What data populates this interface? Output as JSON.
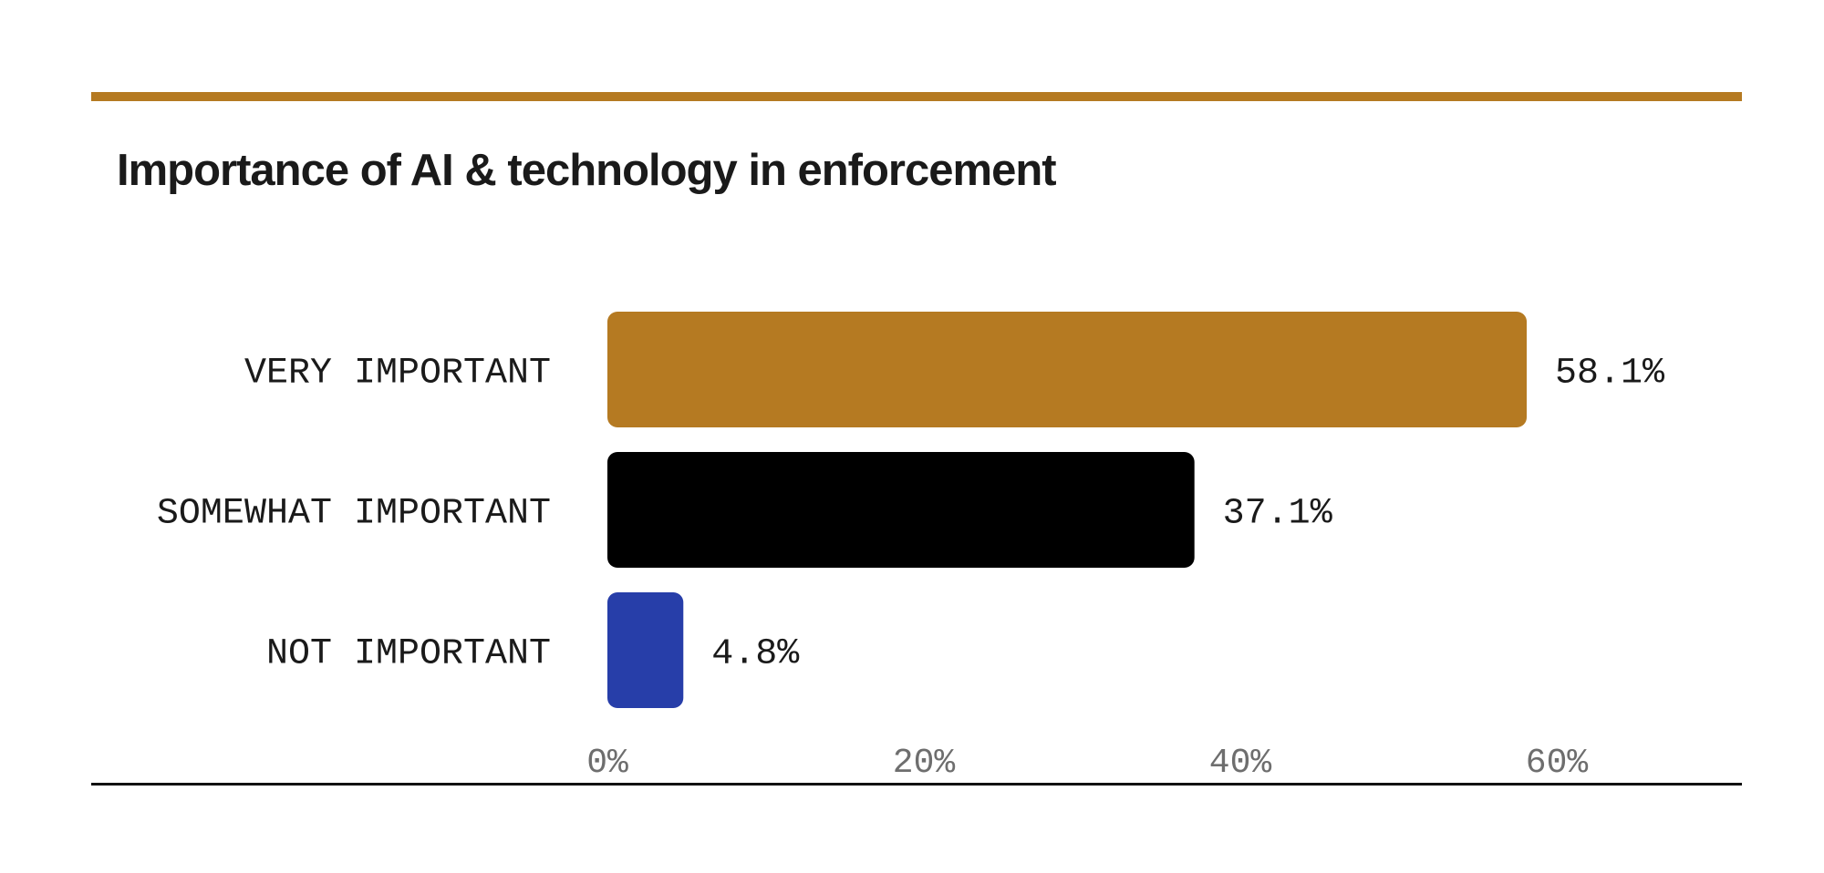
{
  "chart_data": {
    "type": "bar",
    "orientation": "horizontal",
    "title": "Importance of AI & technology in enforcement",
    "xlabel": "",
    "ylabel": "",
    "categories": [
      "VERY IMPORTANT",
      "SOMEWHAT IMPORTANT",
      "NOT IMPORTANT"
    ],
    "values": [
      58.1,
      37.1,
      4.8
    ],
    "value_labels": [
      "58.1%",
      "37.1%",
      "4.8%"
    ],
    "colors": [
      "#b57a22",
      "#000000",
      "#273ea9"
    ],
    "xlim": [
      0,
      72
    ],
    "ticks": [
      0,
      20,
      40,
      60
    ],
    "tick_labels": [
      "0%",
      "20%",
      "40%",
      "60%"
    ],
    "grid": false,
    "legend": "none"
  },
  "style": {
    "accent_rule_color": "#b57a22",
    "baseline_color": "#111111"
  }
}
